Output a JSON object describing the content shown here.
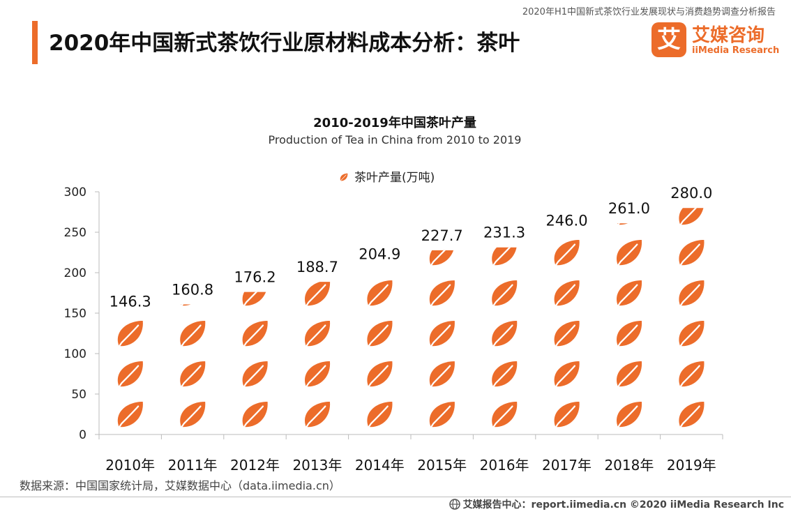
{
  "header": {
    "report_name": "2020年H1中国新式茶饮行业发展现状与消费趋势调查分析报告",
    "page_title": "2020年中国新式茶饮行业原材料成本分析：茶叶"
  },
  "logo": {
    "mark_char": "艾",
    "cn": "艾媒咨询",
    "en": "iiMedia Research",
    "color": "#ec6c2a"
  },
  "chart_data": {
    "type": "bar",
    "title": "2010-2019年中国茶叶产量",
    "subtitle": "Production of Tea in China from 2010 to 2019",
    "legend": "茶叶产量(万吨)",
    "legend_position": "top-center",
    "categories": [
      "2010年",
      "2011年",
      "2012年",
      "2013年",
      "2014年",
      "2015年",
      "2016年",
      "2017年",
      "2018年",
      "2019年"
    ],
    "series": [
      {
        "name": "茶叶产量(万吨)",
        "values": [
          146.3,
          160.8,
          176.2,
          188.7,
          204.9,
          227.7,
          231.3,
          246.0,
          261.0,
          280.0
        ]
      }
    ],
    "value_labels": [
      "146.3",
      "160.8",
      "176.2",
      "188.7",
      "204.9",
      "227.7",
      "231.3",
      "246.0",
      "261.0",
      "280.0"
    ],
    "ylim": [
      0,
      300
    ],
    "yticks": [
      0,
      50,
      100,
      150,
      200,
      250,
      300
    ],
    "grid": false,
    "bar_style": "stacked leaf icons",
    "color": "#ec6c2a"
  },
  "source": "数据来源：中国国家统计局，艾媒数据中心（data.iimedia.cn）",
  "footer": {
    "icon": "globe-icon",
    "text": "艾媒报告中心：report.iimedia.cn ©2020 iiMedia Research Inc"
  }
}
